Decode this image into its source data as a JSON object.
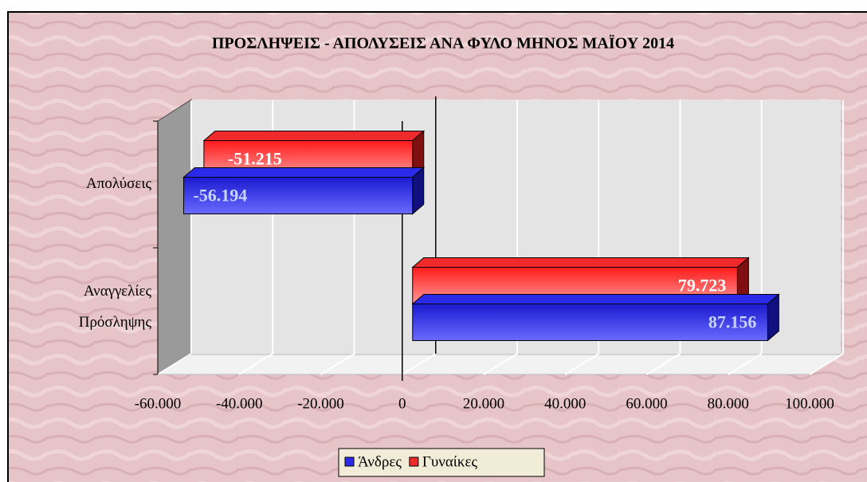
{
  "chart_data": {
    "type": "bar3d-horizontal",
    "title": "ΠΡΟΣΛΗΨΕΙΣ - ΑΠΟΛΥΣΕΙΣ ΑΝΑ ΦΥΛΟ ΜΗΝΟΣ ΜΑΪΟΥ 2014",
    "categories": [
      "Απολύσεις",
      "Αναγγελίες Πρόσληψης"
    ],
    "series": [
      {
        "name": "Άνδρες",
        "color": "#2a2ae8",
        "values": [
          -56194,
          87156
        ],
        "value_labels": [
          "-56.194",
          "87.156"
        ]
      },
      {
        "name": "Γυναίκες",
        "color": "#f02a2a",
        "values": [
          -51215,
          79723
        ],
        "value_labels": [
          "-51.215",
          "79.723"
        ]
      }
    ],
    "xlim": [
      -60000,
      100000
    ],
    "xticks": [
      {
        "value": -60000,
        "label": "-60.000"
      },
      {
        "value": -40000,
        "label": "-40.000"
      },
      {
        "value": -20000,
        "label": "-20.000"
      },
      0,
      {
        "value": 20000,
        "label": "20.000"
      },
      {
        "value": 40000,
        "label": "40.000"
      },
      {
        "value": 60000,
        "label": "60.000"
      },
      {
        "value": 80000,
        "label": "80.000"
      },
      {
        "value": 100000,
        "label": "100.000"
      }
    ],
    "grid": true,
    "legend": "bottom"
  }
}
